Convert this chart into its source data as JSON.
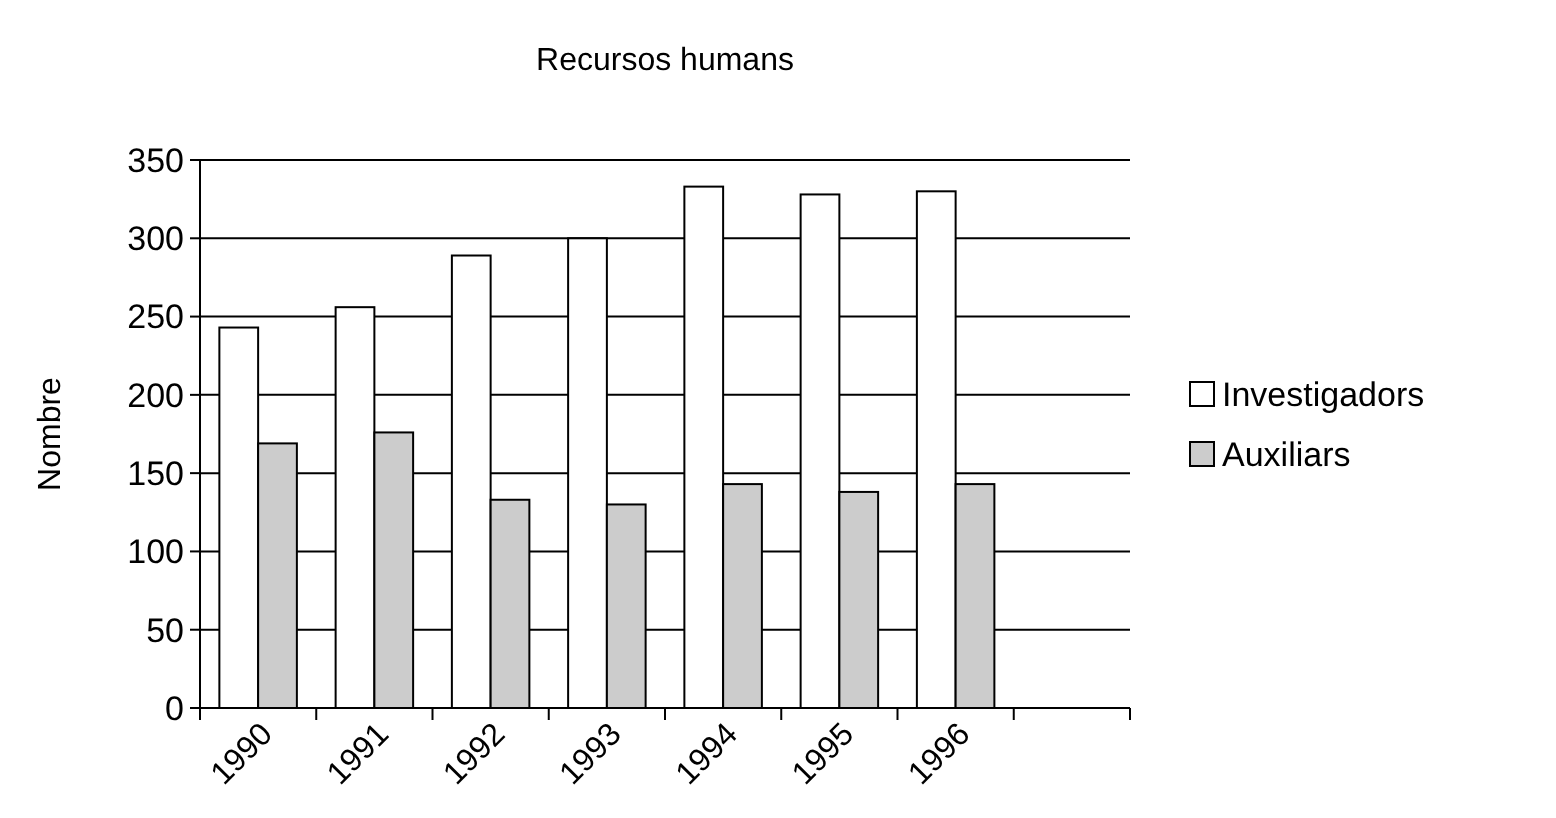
{
  "chart_data": {
    "type": "bar",
    "title": "Recursos humans",
    "ylabel": "Nombre",
    "categories": [
      "1990",
      "1991",
      "1992",
      "1993",
      "1994",
      "1995",
      "1996",
      null
    ],
    "series": [
      {
        "name": "Investigadors",
        "color": "#ffffff",
        "values": [
          243,
          256,
          289,
          300,
          333,
          328,
          330,
          null
        ]
      },
      {
        "name": "Auxiliars",
        "color": "#cccccc",
        "values": [
          169,
          176,
          133,
          130,
          143,
          138,
          143,
          null
        ]
      }
    ],
    "ylim": [
      0,
      350
    ],
    "yticks": [
      0,
      50,
      100,
      150,
      200,
      250,
      300,
      350
    ],
    "grid": "y",
    "legend": "right"
  }
}
